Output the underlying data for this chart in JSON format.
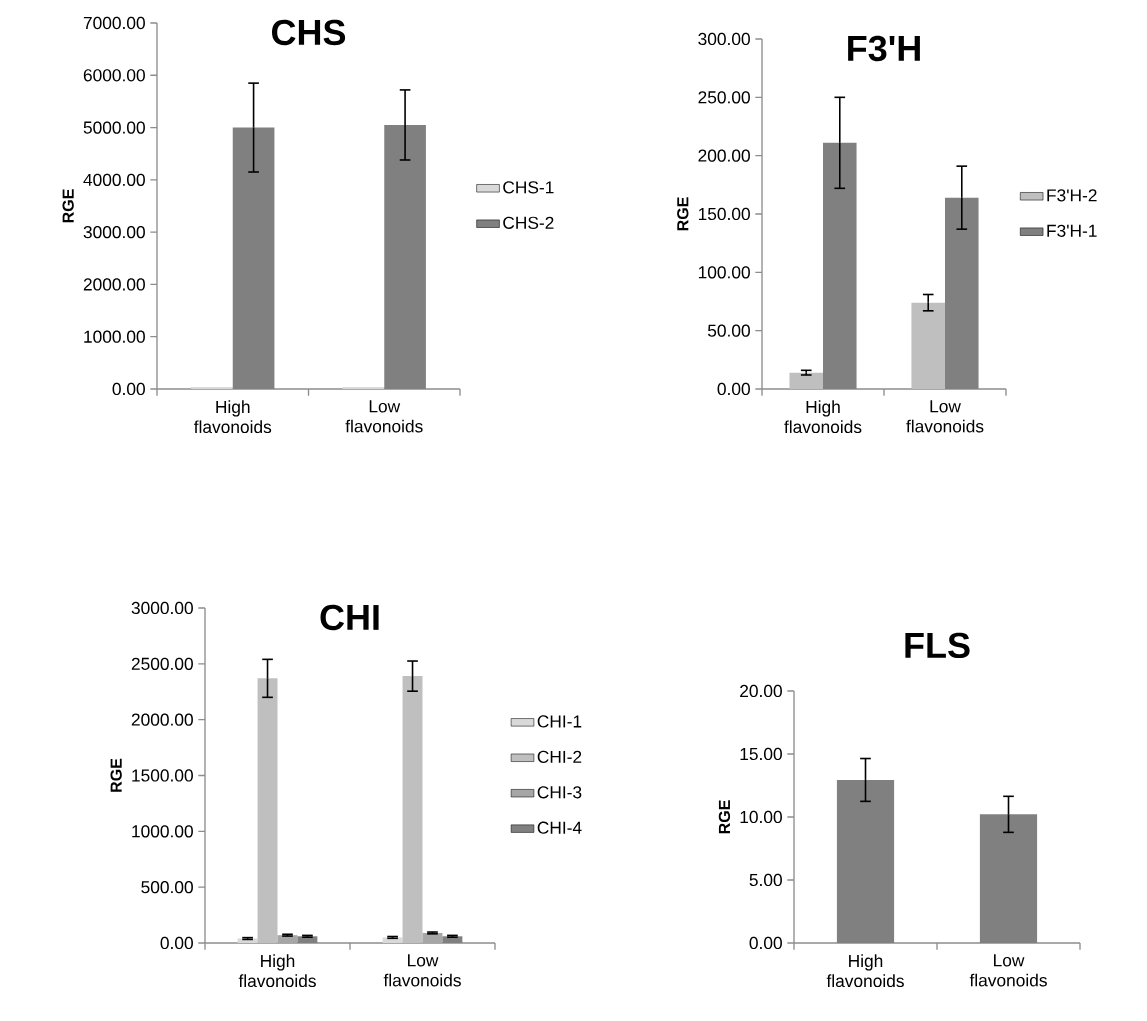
{
  "chart_data": [
    {
      "type": "bar",
      "title": "CHS",
      "ylabel": "RGE",
      "categories": [
        "High flavonoids",
        "Low flavonoids"
      ],
      "series": [
        {
          "name": "CHS-1",
          "color": "#d9d9d9",
          "values": [
            40,
            40
          ]
        },
        {
          "name": "CHS-2",
          "color": "#808080",
          "values": [
            5000,
            5050
          ],
          "errors": [
            850,
            670
          ]
        }
      ],
      "ylim": [
        0,
        7000
      ],
      "yticks": [
        {
          "value": 0,
          "label": "0.00"
        },
        {
          "value": 1000,
          "label": "1000.00"
        },
        {
          "value": 2000,
          "label": "2000.00"
        },
        {
          "value": 3000,
          "label": "3000.00"
        },
        {
          "value": 4000,
          "label": "4000.00"
        },
        {
          "value": 5000,
          "label": "5000.00"
        },
        {
          "value": 6000,
          "label": "6000.00"
        },
        {
          "value": 7000,
          "label": "7000.00"
        }
      ],
      "legend": "right"
    },
    {
      "type": "bar",
      "title": "F3'H",
      "ylabel": "RGE",
      "categories": [
        "High flavonoids",
        "Low flavonoids"
      ],
      "series": [
        {
          "name": "F3'H-2",
          "color": "#bfbfbf",
          "values": [
            14,
            74
          ],
          "errors": [
            2,
            7
          ]
        },
        {
          "name": "F3'H-1",
          "color": "#808080",
          "values": [
            211,
            164
          ],
          "errors": [
            39,
            27
          ]
        }
      ],
      "ylim": [
        0,
        300
      ],
      "yticks": [
        {
          "value": 0,
          "label": "0.00"
        },
        {
          "value": 50,
          "label": "50.00"
        },
        {
          "value": 100,
          "label": "100.00"
        },
        {
          "value": 150,
          "label": "150.00"
        },
        {
          "value": 200,
          "label": "200.00"
        },
        {
          "value": 250,
          "label": "250.00"
        },
        {
          "value": 300,
          "label": "300.00"
        }
      ],
      "legend": "right"
    },
    {
      "type": "bar",
      "title": "CHI",
      "ylabel": "RGE",
      "categories": [
        "High flavonoids",
        "Low flavonoids"
      ],
      "series": [
        {
          "name": "CHI-1",
          "color": "#d9d9d9",
          "values": [
            40,
            50
          ],
          "errors": [
            8,
            8
          ]
        },
        {
          "name": "CHI-2",
          "color": "#bfbfbf",
          "values": [
            2370,
            2390
          ],
          "errors": [
            170,
            135
          ]
        },
        {
          "name": "CHI-3",
          "color": "#a6a6a6",
          "values": [
            70,
            90
          ],
          "errors": [
            8,
            8
          ]
        },
        {
          "name": "CHI-4",
          "color": "#808080",
          "values": [
            60,
            60
          ],
          "errors": [
            8,
            8
          ]
        }
      ],
      "ylim": [
        0,
        3000
      ],
      "yticks": [
        {
          "value": 0,
          "label": "0.00"
        },
        {
          "value": 500,
          "label": "500.00"
        },
        {
          "value": 1000,
          "label": "1000.00"
        },
        {
          "value": 1500,
          "label": "1500.00"
        },
        {
          "value": 2000,
          "label": "2000.00"
        },
        {
          "value": 2500,
          "label": "2500.00"
        },
        {
          "value": 3000,
          "label": "3000.00"
        }
      ],
      "legend": "right"
    },
    {
      "type": "bar",
      "title": "FLS",
      "ylabel": "RGE",
      "categories": [
        "High flavonoids",
        "Low flavonoids"
      ],
      "series": [
        {
          "color": "#808080",
          "values": [
            12.94,
            10.21
          ],
          "errors": [
            1.7,
            1.43
          ]
        }
      ],
      "ylim": [
        0,
        20
      ],
      "yticks": [
        {
          "value": 0,
          "label": "0.00"
        },
        {
          "value": 5,
          "label": "5.00"
        },
        {
          "value": 10,
          "label": "10.00"
        },
        {
          "value": 15,
          "label": "15.00"
        },
        {
          "value": 20,
          "label": "20.00"
        }
      ]
    }
  ]
}
